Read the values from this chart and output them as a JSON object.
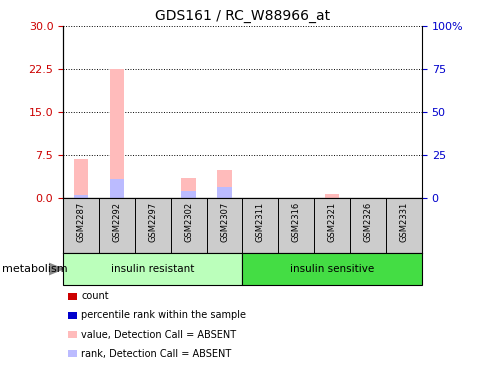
{
  "title": "GDS161 / RC_W88966_at",
  "samples": [
    "GSM2287",
    "GSM2292",
    "GSM2297",
    "GSM2302",
    "GSM2307",
    "GSM2311",
    "GSM2316",
    "GSM2321",
    "GSM2326",
    "GSM2331"
  ],
  "pink_bars": [
    6.8,
    22.5,
    0.0,
    3.5,
    4.8,
    0.0,
    0.0,
    0.7,
    0.0,
    0.0
  ],
  "blue_bars": [
    0.5,
    3.2,
    0.0,
    1.2,
    1.8,
    0.0,
    0.0,
    0.0,
    0.0,
    0.0
  ],
  "ylim_left": [
    0,
    30
  ],
  "ylim_right": [
    0,
    100
  ],
  "yticks_left": [
    0,
    7.5,
    15,
    22.5,
    30
  ],
  "yticks_right": [
    0,
    25,
    50,
    75,
    100
  ],
  "ytick_labels_right": [
    "0",
    "25",
    "50",
    "75",
    "100%"
  ],
  "groups": [
    {
      "label": "insulin resistant",
      "start": 0,
      "end": 5,
      "color": "#bbffbb"
    },
    {
      "label": "insulin sensitive",
      "start": 5,
      "end": 10,
      "color": "#44dd44"
    }
  ],
  "group_label": "metabolism",
  "legend_items": [
    {
      "label": "count",
      "color": "#cc0000"
    },
    {
      "label": "percentile rank within the sample",
      "color": "#0000cc"
    },
    {
      "label": "value, Detection Call = ABSENT",
      "color": "#ffbbbb"
    },
    {
      "label": "rank, Detection Call = ABSENT",
      "color": "#bbbbff"
    }
  ],
  "pink_color": "#ffbbbb",
  "blue_color": "#bbbbff",
  "bar_width": 0.4,
  "grid_color": "black",
  "bg_color": "#ffffff",
  "sample_label_area_color": "#cccccc",
  "left_axis_color": "#cc0000",
  "right_axis_color": "#0000cc"
}
